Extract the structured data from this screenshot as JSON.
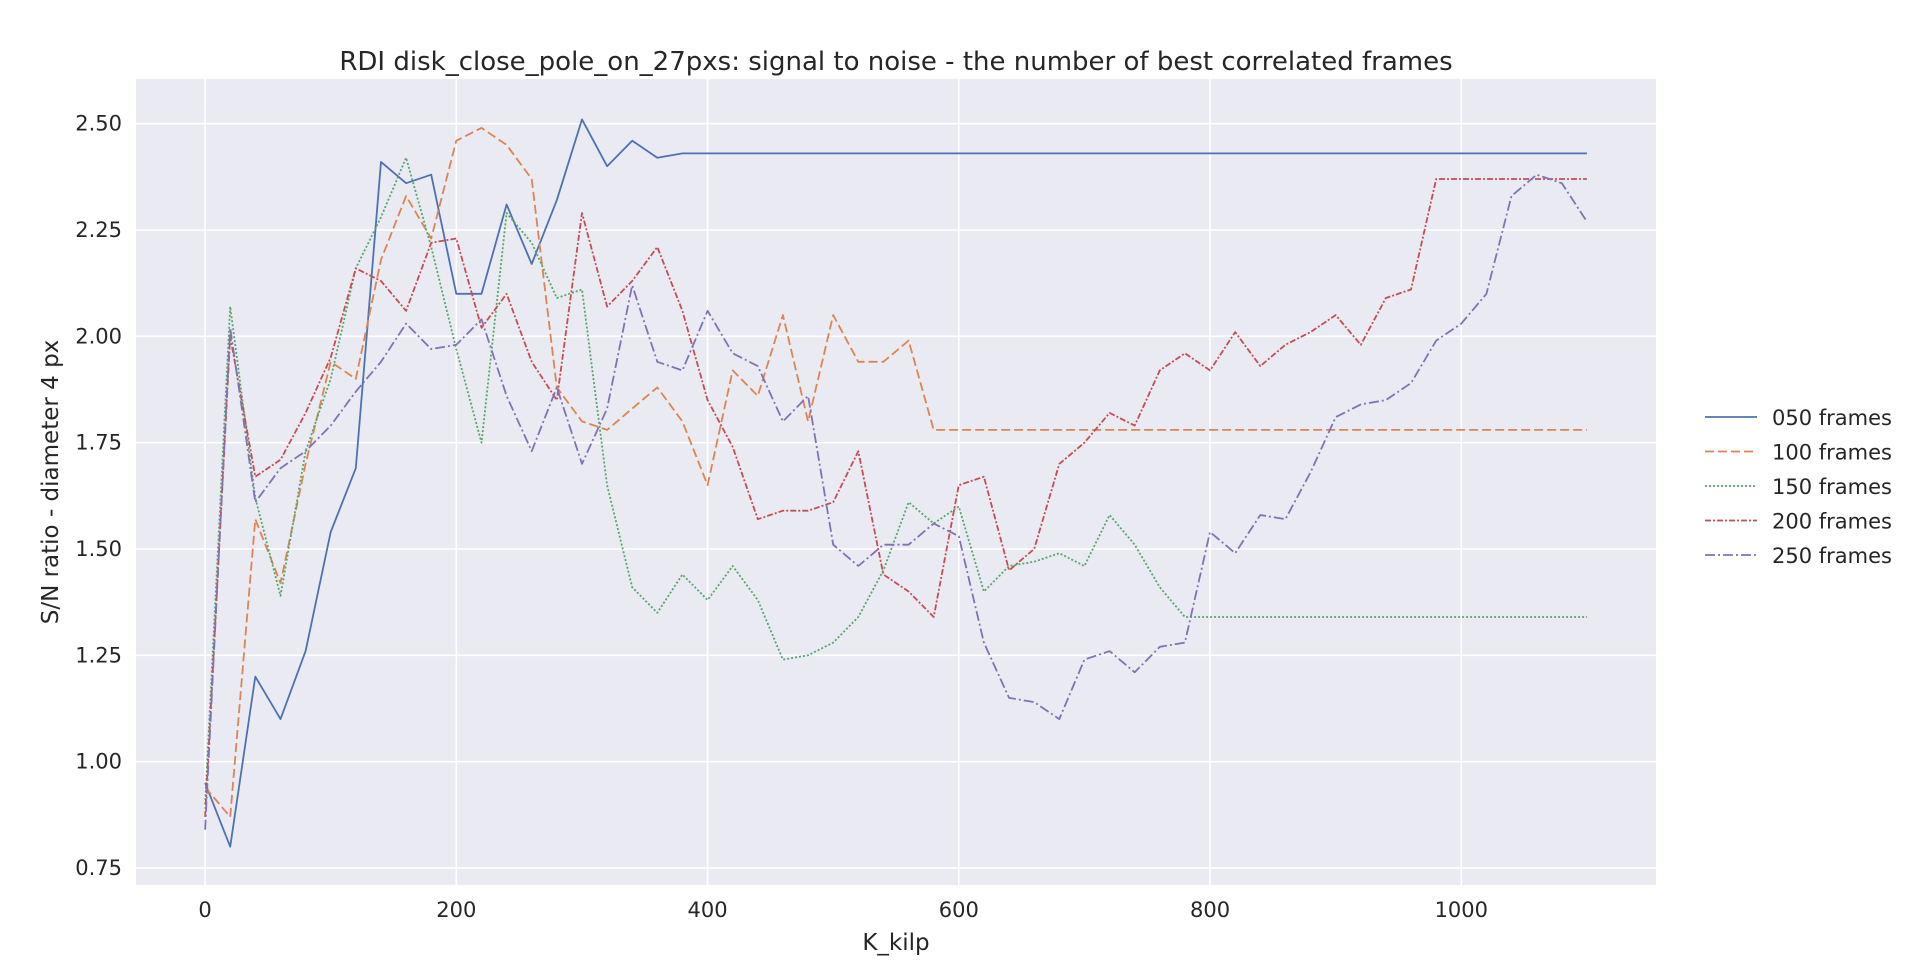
{
  "chart_data": {
    "type": "line",
    "title": "RDI disk_close_pole_on_27pxs: signal to noise - the number of best correlated frames",
    "xlabel": "K_kilp",
    "ylabel": "S/N ratio - diameter 4 px",
    "xlim": [
      -55,
      1155
    ],
    "ylim": [
      0.71,
      2.605
    ],
    "x_ticks": [
      0,
      200,
      400,
      600,
      800,
      1000
    ],
    "y_ticks": [
      0.75,
      1.0,
      1.25,
      1.5,
      1.75,
      2.0,
      2.25,
      2.5
    ],
    "x_tick_labels": [
      "0",
      "200",
      "400",
      "600",
      "800",
      "1000"
    ],
    "y_tick_labels": [
      "0.75",
      "1.00",
      "1.25",
      "1.50",
      "1.75",
      "2.00",
      "2.25",
      "2.50"
    ],
    "grid": true,
    "legend_position": "right",
    "x": [
      0,
      20,
      40,
      60,
      80,
      100,
      120,
      140,
      160,
      180,
      200,
      220,
      240,
      260,
      280,
      300,
      320,
      340,
      360,
      380,
      400,
      420,
      440,
      460,
      480,
      500,
      520,
      540,
      560,
      580,
      600,
      620,
      640,
      660,
      680,
      700,
      720,
      740,
      760,
      780,
      800,
      820,
      840,
      860,
      880,
      900,
      920,
      940,
      960,
      980,
      1000,
      1020,
      1040,
      1060,
      1080,
      1100
    ],
    "series": [
      {
        "name": "050 frames",
        "color": "#4c72b0",
        "dash": "",
        "values": [
          0.95,
          0.8,
          1.2,
          1.1,
          1.26,
          1.54,
          1.69,
          2.41,
          2.36,
          2.38,
          2.1,
          2.1,
          2.31,
          2.17,
          2.32,
          2.51,
          2.4,
          2.46,
          2.42,
          2.43,
          2.43,
          2.43,
          2.43,
          2.43,
          2.43,
          2.43,
          2.43,
          2.43,
          2.43,
          2.43,
          2.43,
          2.43,
          2.43,
          2.43,
          2.43,
          2.43,
          2.43,
          2.43,
          2.43,
          2.43,
          2.43,
          2.43,
          2.43,
          2.43,
          2.43,
          2.43,
          2.43,
          2.43,
          2.43,
          2.43,
          2.43,
          2.43,
          2.43,
          2.43,
          2.43,
          2.43
        ]
      },
      {
        "name": "100 frames",
        "color": "#dd8452",
        "dash": "9,4",
        "values": [
          0.94,
          0.87,
          1.57,
          1.42,
          1.7,
          1.94,
          1.9,
          2.18,
          2.33,
          2.23,
          2.46,
          2.49,
          2.45,
          2.37,
          1.88,
          1.8,
          1.78,
          1.83,
          1.88,
          1.8,
          1.65,
          1.92,
          1.86,
          2.05,
          1.8,
          2.05,
          1.94,
          1.94,
          1.99,
          1.78,
          1.78,
          1.78,
          1.78,
          1.78,
          1.78,
          1.78,
          1.78,
          1.78,
          1.78,
          1.78,
          1.78,
          1.78,
          1.78,
          1.78,
          1.78,
          1.78,
          1.78,
          1.78,
          1.78,
          1.78,
          1.78,
          1.78,
          1.78,
          1.78,
          1.78,
          1.78
        ]
      },
      {
        "name": "150 frames",
        "color": "#55a868",
        "dash": "2,2",
        "values": [
          0.9,
          2.07,
          1.62,
          1.39,
          1.73,
          1.9,
          2.16,
          2.28,
          2.42,
          2.21,
          1.97,
          1.75,
          2.29,
          2.22,
          2.09,
          2.11,
          1.65,
          1.41,
          1.35,
          1.44,
          1.38,
          1.46,
          1.38,
          1.24,
          1.25,
          1.28,
          1.34,
          1.45,
          1.61,
          1.56,
          1.6,
          1.4,
          1.46,
          1.47,
          1.49,
          1.46,
          1.58,
          1.51,
          1.41,
          1.34,
          1.34,
          1.34,
          1.34,
          1.34,
          1.34,
          1.34,
          1.34,
          1.34,
          1.34,
          1.34,
          1.34,
          1.34,
          1.34,
          1.34,
          1.34,
          1.34
        ]
      },
      {
        "name": "200 frames",
        "color": "#c44e52",
        "dash": "6,2,2,2",
        "values": [
          0.87,
          2.0,
          1.67,
          1.71,
          1.82,
          1.95,
          2.16,
          2.13,
          2.06,
          2.22,
          2.23,
          2.02,
          2.1,
          1.94,
          1.85,
          2.29,
          2.07,
          2.13,
          2.21,
          2.06,
          1.85,
          1.74,
          1.57,
          1.59,
          1.59,
          1.61,
          1.73,
          1.44,
          1.4,
          1.34,
          1.65,
          1.67,
          1.45,
          1.5,
          1.7,
          1.75,
          1.82,
          1.79,
          1.92,
          1.96,
          1.92,
          2.01,
          1.93,
          1.98,
          2.01,
          2.05,
          1.98,
          2.09,
          2.11,
          2.37,
          2.37,
          2.37,
          2.37,
          2.37,
          2.37,
          2.37
        ]
      },
      {
        "name": "250 frames",
        "color": "#8172b3",
        "dash": "10,3,2,3",
        "values": [
          0.84,
          2.02,
          1.61,
          1.69,
          1.73,
          1.79,
          1.87,
          1.94,
          2.03,
          1.97,
          1.98,
          2.04,
          1.86,
          1.73,
          1.88,
          1.7,
          1.83,
          2.12,
          1.94,
          1.92,
          2.06,
          1.96,
          1.93,
          1.8,
          1.86,
          1.51,
          1.46,
          1.51,
          1.51,
          1.56,
          1.53,
          1.28,
          1.15,
          1.14,
          1.1,
          1.24,
          1.26,
          1.21,
          1.27,
          1.28,
          1.54,
          1.49,
          1.58,
          1.57,
          1.68,
          1.81,
          1.84,
          1.85,
          1.89,
          1.99,
          2.03,
          2.1,
          2.33,
          2.38,
          2.36,
          2.27
        ]
      }
    ]
  }
}
